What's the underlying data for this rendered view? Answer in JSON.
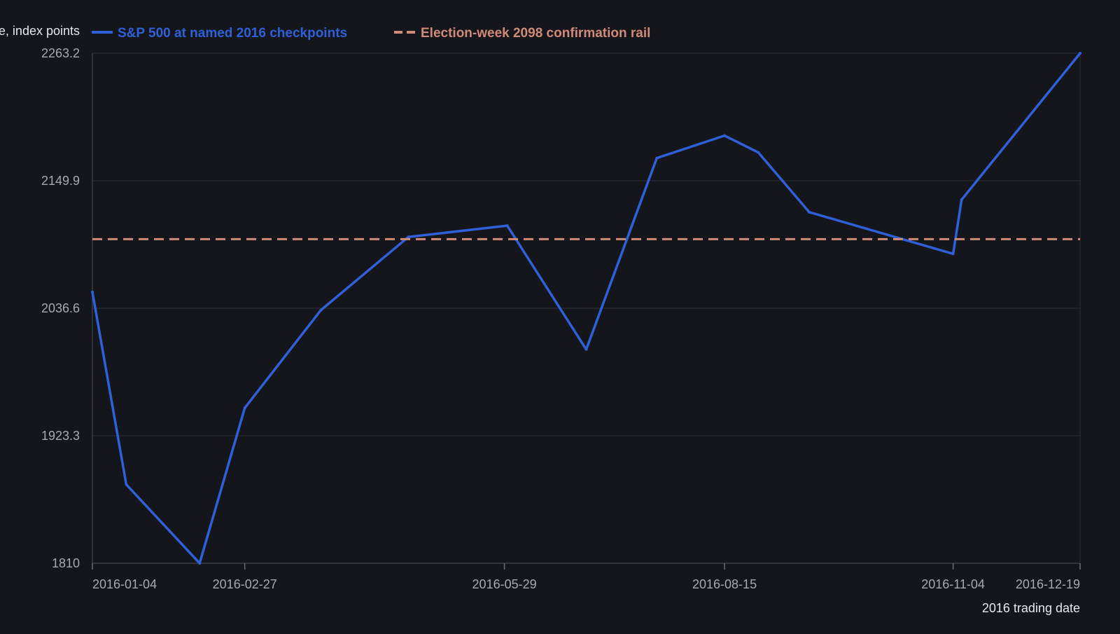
{
  "chart_data": {
    "type": "line",
    "title": "",
    "xlabel": "2016 trading date",
    "ylabel": "Close, index points",
    "ylim": [
      1810,
      2263.2
    ],
    "xlim": [
      "2016-01-04",
      "2016-12-30"
    ],
    "y_ticks": [
      "1810",
      "1923.3",
      "2036.6",
      "2149.9",
      "2263.2"
    ],
    "x_ticks": [
      "2016-01-04",
      "2016-02-27",
      "2016-05-29",
      "2016-08-15",
      "2016-11-04",
      "2016-12-19"
    ],
    "grid": true,
    "legend_position": "top",
    "series": [
      {
        "name": "S&P 500 at named 2016 checkpoints",
        "color": "#3060d8",
        "style": "solid",
        "points": [
          {
            "x": "2016-01-04",
            "y": 2051
          },
          {
            "x": "2016-01-16",
            "y": 1880
          },
          {
            "x": "2016-02-11",
            "y": 1810
          },
          {
            "x": "2016-02-27",
            "y": 1948
          },
          {
            "x": "2016-03-25",
            "y": 2035
          },
          {
            "x": "2016-04-25",
            "y": 2100
          },
          {
            "x": "2016-05-30",
            "y": 2110
          },
          {
            "x": "2016-06-27",
            "y": 2000
          },
          {
            "x": "2016-07-22",
            "y": 2170
          },
          {
            "x": "2016-08-15",
            "y": 2190
          },
          {
            "x": "2016-08-27",
            "y": 2175
          },
          {
            "x": "2016-09-14",
            "y": 2122
          },
          {
            "x": "2016-11-04",
            "y": 2085
          },
          {
            "x": "2016-11-07",
            "y": 2133
          },
          {
            "x": "2016-12-19",
            "y": 2263.2
          }
        ]
      },
      {
        "name": "Election-week 2098 confirmation rail",
        "color": "#d08a78",
        "style": "dashed",
        "y": 2098
      }
    ]
  }
}
